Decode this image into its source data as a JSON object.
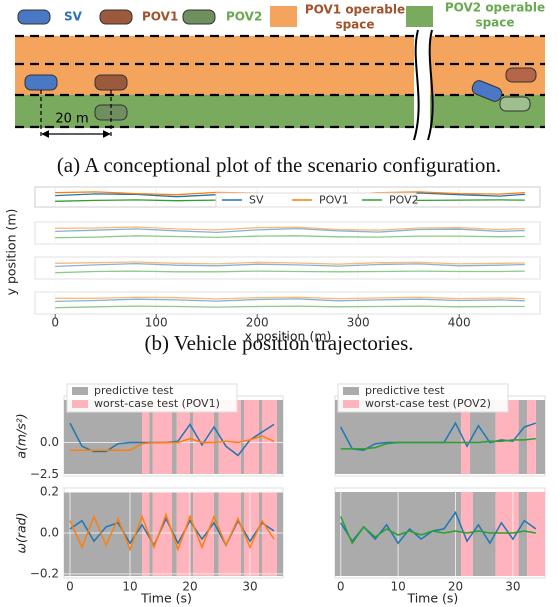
{
  "diagram": {
    "legend": [
      {
        "label": "SV",
        "color": "#2f6fbf"
      },
      {
        "label": "POV1",
        "color": "#a0522d"
      },
      {
        "label": "POV2",
        "color": "#6aa84f"
      }
    ],
    "spaces": [
      {
        "label": [
          "POV1 operable",
          "space"
        ],
        "color": "#f5a45d",
        "text_color": "#a0522d"
      },
      {
        "label": [
          "POV2 operable",
          "space"
        ],
        "color": "#7aaa5e",
        "text_color": "#6aa84f"
      }
    ],
    "distance": "20 m"
  },
  "captions": [
    "(a) A conceptional plot of the scenario configuration.",
    "(b) Vehicle position trajectories."
  ],
  "chart_data": [
    {
      "type": "line",
      "xlabel": "x position (m)",
      "ylabel": "y position (m)",
      "x": [
        0,
        40,
        80,
        120,
        160,
        200,
        240,
        280,
        320,
        360,
        400,
        440,
        465
      ],
      "xlim": [
        -20,
        480
      ],
      "xticks": [
        0,
        100,
        200,
        300,
        400
      ],
      "ylim": [
        -4,
        3
      ],
      "legend": true,
      "series": [
        {
          "name": "SV",
          "color": "#1f77b4",
          "values": [
            [
              0,
              0.6,
              0.4,
              -0.4,
              0.3,
              0.7,
              0.1,
              -0.3,
              0.4,
              0.9,
              0.3,
              -0.2,
              0.4
            ],
            [
              0,
              0.4,
              0.8,
              0.2,
              -0.3,
              0.5,
              0.9,
              0.2,
              -0.2,
              0.6,
              0.7,
              0,
              0.3
            ],
            [
              0,
              0.5,
              0.9,
              0.4,
              0.2,
              0.7,
              0.5,
              0.1,
              0.6,
              0.8,
              0.2,
              0.4,
              0.6
            ],
            [
              0,
              0.3,
              0.7,
              0.5,
              0.1,
              0.6,
              0.8,
              0.2,
              0.5,
              0.7,
              0.3,
              0.5,
              0.2
            ]
          ]
        },
        {
          "name": "POV1",
          "color": "#ff7f0e",
          "values": [
            [
              1,
              1.3,
              0.7,
              0.3,
              1.1,
              0.9,
              0.5,
              0.3,
              1.0,
              1.3,
              0.7,
              0.5,
              1.0
            ],
            [
              1,
              1.1,
              1.4,
              0.8,
              0.5,
              1.2,
              1.3,
              0.6,
              0.4,
              1.1,
              1.2,
              0.6,
              0.9
            ],
            [
              1,
              1.2,
              1.4,
              1.0,
              0.8,
              1.3,
              1.1,
              0.7,
              1.2,
              1.3,
              0.8,
              1.0,
              1.1
            ],
            [
              1,
              1.0,
              1.3,
              1.2,
              0.8,
              1.2,
              1.3,
              0.9,
              1.1,
              1.3,
              0.9,
              1.1,
              0.9
            ]
          ]
        },
        {
          "name": "POV2",
          "color": "#2ca02c",
          "values": [
            [
              -2,
              -1.7,
              -1.5,
              -1.8,
              -1.6,
              -1.6,
              -1.7,
              -1.5,
              -1.6,
              -1.7,
              -1.6,
              -1.5,
              -1.6
            ],
            [
              -2,
              -1.8,
              -1.4,
              -1.6,
              -1.9,
              -1.5,
              -1.4,
              -1.7,
              -1.8,
              -1.5,
              -1.5,
              -1.7,
              -1.6
            ],
            [
              -2,
              -1.6,
              -1.5,
              -1.7,
              -1.7,
              -1.5,
              -1.6,
              -1.7,
              -1.6,
              -1.5,
              -1.6,
              -1.6,
              -1.5
            ],
            [
              -2,
              -1.7,
              -1.5,
              -1.6,
              -1.8,
              -1.6,
              -1.5,
              -1.7,
              -1.6,
              -1.5,
              -1.7,
              -1.6,
              -1.6
            ]
          ]
        }
      ]
    },
    {
      "type": "line",
      "ylabel": "a(m/s²)",
      "x": [
        0,
        2,
        4,
        6,
        8,
        10,
        12,
        14,
        16,
        18,
        20,
        22,
        24,
        26,
        28,
        30,
        32,
        34
      ],
      "xlim": [
        -1,
        35.5
      ],
      "ylim": [
        -2.6,
        3.6
      ],
      "yticks": [
        {
          "value": -2.5,
          "label": "−2.5"
        },
        {
          "value": 0,
          "label": "0.0"
        }
      ],
      "legend": true,
      "shading": [
        {
          "name": "predictive test",
          "color": "#ababab",
          "intervals": [
            [
              -1,
              12
            ],
            [
              13.2,
              13.8
            ],
            [
              17,
              17.8
            ],
            [
              20,
              20.5
            ],
            [
              24,
              24.8
            ],
            [
              28.5,
              29
            ],
            [
              31.5,
              32
            ],
            [
              34.5,
              35.5
            ]
          ]
        },
        {
          "name": "worst-case test (POV1)",
          "color": "#ffb3bd",
          "intervals": [
            [
              12,
              13.2
            ],
            [
              13.8,
              17
            ],
            [
              17.8,
              20
            ],
            [
              20.5,
              24
            ],
            [
              24.8,
              28.5
            ],
            [
              29,
              31.5
            ],
            [
              32,
              34.5
            ]
          ]
        }
      ],
      "series": [
        {
          "color": "#1f77b4",
          "values": [
            1.5,
            -0.3,
            -0.7,
            -0.7,
            -0.1,
            0,
            0,
            0,
            0,
            0.1,
            1.4,
            -0.2,
            1.2,
            -0.3,
            -1.0,
            0.2,
            0.8,
            1.4
          ]
        },
        {
          "color": "#ff7f0e",
          "values": [
            -0.6,
            -0.6,
            -0.6,
            -0.6,
            -0.6,
            -0.6,
            -0.1,
            0,
            0,
            0,
            0.3,
            0,
            0,
            0.1,
            0,
            0.2,
            0.5,
            0.1
          ]
        }
      ]
    },
    {
      "type": "line",
      "x": [
        0,
        2,
        4,
        6,
        8,
        10,
        12,
        14,
        16,
        18,
        20,
        22,
        24,
        26,
        28,
        30,
        32,
        34
      ],
      "xlim": [
        -1,
        35.6
      ],
      "ylim": [
        -2.6,
        3.6
      ],
      "legend": true,
      "shading": [
        {
          "name": "predictive test",
          "color": "#ababab",
          "intervals": [
            [
              -1,
              21
            ],
            [
              22.5,
              27
            ],
            [
              31,
              32.5
            ],
            [
              34,
              35.6
            ]
          ]
        },
        {
          "name": "worst-case test (POV2)",
          "color": "#ffb3bd",
          "intervals": [
            [
              21,
              22.5
            ],
            [
              27,
              31
            ],
            [
              32.5,
              34
            ]
          ]
        }
      ],
      "series": [
        {
          "color": "#1f77b4",
          "values": [
            1.2,
            -0.5,
            -0.6,
            -0.1,
            0,
            0,
            0,
            0,
            0,
            0,
            1.5,
            -0.3,
            1.3,
            0,
            0.2,
            0.1,
            1.2,
            1.5
          ]
        },
        {
          "color": "#2ca02c",
          "values": [
            -0.5,
            -0.5,
            -0.5,
            -0.4,
            -0.1,
            0,
            0,
            0,
            0,
            0,
            0,
            0,
            0,
            0.1,
            0.1,
            0.2,
            0.2,
            0.3
          ]
        }
      ]
    },
    {
      "type": "line",
      "ylabel": "ω(rad)",
      "xlabel": "Time (s)",
      "x": [
        0,
        2,
        4,
        6,
        8,
        10,
        12,
        14,
        16,
        18,
        20,
        22,
        24,
        26,
        28,
        30,
        32,
        34
      ],
      "xlim": [
        -1,
        35.5
      ],
      "xticks": [
        0,
        10,
        20,
        30
      ],
      "ylim": [
        -0.22,
        0.22
      ],
      "yticks": [
        {
          "value": -0.2,
          "label": "−0.2"
        },
        {
          "value": 0,
          "label": "0.0"
        },
        0.2
      ],
      "shading": [
        {
          "color": "#ababab",
          "intervals": [
            [
              -1,
              12
            ],
            [
              13.2,
              13.8
            ],
            [
              17,
              17.8
            ],
            [
              20,
              20.5
            ],
            [
              24,
              24.8
            ],
            [
              28.5,
              29
            ],
            [
              31.5,
              32
            ],
            [
              34.5,
              35.5
            ]
          ]
        },
        {
          "color": "#ffb3bd",
          "intervals": [
            [
              12,
              13.2
            ],
            [
              13.8,
              17
            ],
            [
              17.8,
              20
            ],
            [
              20.5,
              24
            ],
            [
              24.8,
              28.5
            ],
            [
              29,
              31.5
            ],
            [
              32,
              34.5
            ]
          ]
        }
      ],
      "series": [
        {
          "color": "#1f77b4",
          "values": [
            0.02,
            0.06,
            -0.04,
            0.03,
            0.05,
            -0.05,
            0.04,
            -0.06,
            0.07,
            -0.05,
            0.06,
            -0.03,
            0.05,
            -0.06,
            0.06,
            -0.04,
            0.05,
            0.01
          ]
        },
        {
          "color": "#ff7f0e",
          "values": [
            0.06,
            -0.07,
            0.08,
            -0.06,
            0.07,
            -0.08,
            0.08,
            -0.07,
            0.09,
            -0.08,
            0.08,
            -0.07,
            0.08,
            -0.06,
            0.07,
            -0.07,
            0.06,
            -0.03
          ]
        }
      ]
    },
    {
      "type": "line",
      "xlabel": "Time (s)",
      "x": [
        0,
        2,
        4,
        6,
        8,
        10,
        12,
        14,
        16,
        18,
        20,
        22,
        24,
        26,
        28,
        30,
        32,
        34
      ],
      "xlim": [
        -1,
        35.6
      ],
      "xticks": [
        0,
        10,
        20,
        30
      ],
      "ylim": [
        -0.22,
        0.22
      ],
      "shading": [
        {
          "color": "#ababab",
          "intervals": [
            [
              -1,
              21
            ],
            [
              23,
              27
            ],
            [
              31,
              32.5
            ]
          ]
        },
        {
          "color": "#ffb3bd",
          "intervals": [
            [
              21,
              23
            ],
            [
              27,
              31
            ],
            [
              32.5,
              35.6
            ]
          ]
        }
      ],
      "series": [
        {
          "color": "#1f77b4",
          "values": [
            0.05,
            -0.04,
            0.03,
            -0.03,
            0.04,
            -0.05,
            0.02,
            -0.03,
            0.01,
            0.02,
            0.1,
            -0.04,
            0.04,
            -0.05,
            0.05,
            -0.03,
            0.06,
            0.02
          ]
        },
        {
          "color": "#2ca02c",
          "values": [
            0.08,
            -0.05,
            0.03,
            -0.02,
            0.02,
            -0.01,
            0.01,
            -0.01,
            0.01,
            0,
            0.01,
            0,
            0.01,
            0,
            0,
            0,
            0.01,
            0
          ]
        }
      ]
    }
  ]
}
